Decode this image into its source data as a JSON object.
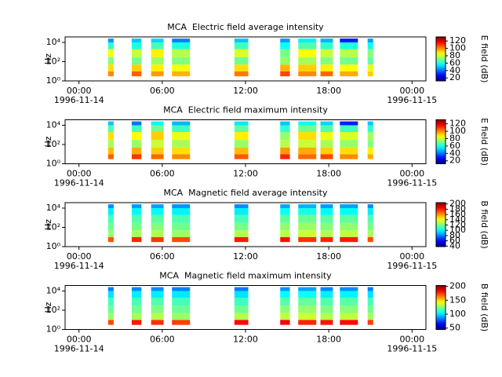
{
  "chart_data": [
    {
      "type": "spectrogram",
      "title": "MCA  Electric field average intensity",
      "ylabel": "Hz",
      "zlabel": "E field (dB)",
      "xlim": [
        -1,
        25
      ],
      "xticks": [
        {
          "value": 0,
          "label": "00:00"
        },
        {
          "value": 6,
          "label": "06:00"
        },
        {
          "value": 12,
          "label": "12:00"
        },
        {
          "value": 18,
          "label": "18:00"
        },
        {
          "value": 24,
          "label": "00:00"
        }
      ],
      "date_labels": [
        {
          "value": 0,
          "label": "1996-11-14"
        },
        {
          "value": 24,
          "label": "1996-11-15"
        }
      ],
      "ylim": [
        1,
        37000
      ],
      "log_y": true,
      "yticks": [
        {
          "value": 1,
          "label": "10⁰"
        },
        {
          "value": 100,
          "label": "10²"
        },
        {
          "value": 10000,
          "label": "10⁴"
        }
      ],
      "y_edges": [
        3,
        10,
        50,
        300,
        2000,
        10000,
        25000
      ],
      "colormap": "jet",
      "zlim": [
        12,
        131
      ],
      "zticks": [
        20,
        40,
        60,
        80,
        100,
        120
      ],
      "segments": [
        {
          "start": 2.1,
          "end": 2.5,
          "values": [
            100,
            90,
            72,
            85,
            62,
            45
          ]
        },
        {
          "start": 3.8,
          "end": 4.5,
          "values": [
            105,
            92,
            70,
            80,
            60,
            50
          ]
        },
        {
          "start": 5.2,
          "end": 6.1,
          "values": [
            98,
            88,
            75,
            88,
            65,
            52
          ]
        },
        {
          "start": 6.7,
          "end": 8.0,
          "values": [
            95,
            85,
            72,
            78,
            60,
            42
          ]
        },
        {
          "start": 11.2,
          "end": 12.2,
          "values": [
            102,
            90,
            70,
            82,
            64,
            50
          ]
        },
        {
          "start": 14.5,
          "end": 15.2,
          "values": [
            108,
            95,
            74,
            70,
            58,
            45
          ]
        },
        {
          "start": 15.8,
          "end": 17.1,
          "values": [
            100,
            92,
            76,
            86,
            66,
            55
          ]
        },
        {
          "start": 17.4,
          "end": 18.3,
          "values": [
            104,
            88,
            72,
            80,
            62,
            48
          ]
        },
        {
          "start": 18.8,
          "end": 20.1,
          "values": [
            96,
            86,
            70,
            78,
            60,
            30
          ]
        },
        {
          "start": 20.8,
          "end": 21.2,
          "values": [
            92,
            84,
            68,
            72,
            58,
            46
          ]
        }
      ]
    },
    {
      "type": "spectrogram",
      "title": "MCA  Electric field maximum intensity",
      "ylabel": "Hz",
      "zlabel": "E field (dB)",
      "xlim": [
        -1,
        25
      ],
      "xticks": [
        {
          "value": 0,
          "label": "00:00"
        },
        {
          "value": 6,
          "label": "06:00"
        },
        {
          "value": 12,
          "label": "12:00"
        },
        {
          "value": 18,
          "label": "18:00"
        },
        {
          "value": 24,
          "label": "00:00"
        }
      ],
      "date_labels": [
        {
          "value": 0,
          "label": "1996-11-14"
        },
        {
          "value": 24,
          "label": "1996-11-15"
        }
      ],
      "ylim": [
        1,
        37000
      ],
      "log_y": true,
      "yticks": [
        {
          "value": 1,
          "label": "10⁰"
        },
        {
          "value": 100,
          "label": "10²"
        },
        {
          "value": 10000,
          "label": "10⁴"
        }
      ],
      "y_edges": [
        3,
        10,
        50,
        300,
        2000,
        10000,
        25000
      ],
      "colormap": "jet",
      "zlim": [
        12,
        131
      ],
      "zticks": [
        20,
        40,
        60,
        80,
        100,
        120
      ],
      "segments": [
        {
          "start": 2.1,
          "end": 2.5,
          "values": [
            105,
            94,
            76,
            90,
            66,
            50
          ]
        },
        {
          "start": 3.8,
          "end": 4.5,
          "values": [
            110,
            96,
            74,
            86,
            64,
            40
          ]
        },
        {
          "start": 5.2,
          "end": 6.1,
          "values": [
            104,
            92,
            80,
            92,
            70,
            56
          ]
        },
        {
          "start": 6.7,
          "end": 8.0,
          "values": [
            100,
            90,
            76,
            84,
            64,
            48
          ]
        },
        {
          "start": 11.2,
          "end": 12.2,
          "values": [
            106,
            94,
            74,
            88,
            68,
            54
          ]
        },
        {
          "start": 14.5,
          "end": 15.2,
          "values": [
            112,
            98,
            78,
            74,
            62,
            50
          ]
        },
        {
          "start": 15.8,
          "end": 17.1,
          "values": [
            104,
            96,
            80,
            90,
            70,
            58
          ]
        },
        {
          "start": 17.4,
          "end": 18.3,
          "values": [
            108,
            92,
            76,
            84,
            66,
            52
          ]
        },
        {
          "start": 18.8,
          "end": 20.1,
          "values": [
            100,
            90,
            74,
            82,
            64,
            30
          ]
        },
        {
          "start": 20.8,
          "end": 21.2,
          "values": [
            96,
            88,
            72,
            76,
            62,
            50
          ]
        }
      ]
    },
    {
      "type": "spectrogram",
      "title": "MCA  Magnetic field average intensity",
      "ylabel": "Hz",
      "zlabel": "B field (dB)",
      "xlim": [
        -1,
        25
      ],
      "xticks": [
        {
          "value": 0,
          "label": "00:00"
        },
        {
          "value": 6,
          "label": "06:00"
        },
        {
          "value": 12,
          "label": "12:00"
        },
        {
          "value": 18,
          "label": "18:00"
        },
        {
          "value": 24,
          "label": "00:00"
        }
      ],
      "date_labels": [
        {
          "value": 0,
          "label": "1996-11-14"
        },
        {
          "value": 24,
          "label": "1996-11-15"
        }
      ],
      "ylim": [
        1,
        37000
      ],
      "log_y": true,
      "yticks": [
        {
          "value": 1,
          "label": "10⁰"
        },
        {
          "value": 100,
          "label": "10²"
        },
        {
          "value": 10000,
          "label": "10⁴"
        }
      ],
      "y_edges": [
        3,
        10,
        50,
        300,
        2000,
        10000,
        25000
      ],
      "colormap": "jet",
      "zlim": [
        38,
        205
      ],
      "zticks": [
        40,
        60,
        80,
        100,
        120,
        140,
        160,
        180,
        200
      ],
      "segments": [
        {
          "start": 2.1,
          "end": 2.5,
          "values": [
            170,
            125,
            118,
            112,
            98,
            82
          ]
        },
        {
          "start": 3.8,
          "end": 4.5,
          "values": [
            178,
            128,
            120,
            114,
            100,
            84
          ]
        },
        {
          "start": 5.2,
          "end": 6.1,
          "values": [
            175,
            130,
            122,
            115,
            100,
            85
          ]
        },
        {
          "start": 6.7,
          "end": 8.0,
          "values": [
            172,
            126,
            119,
            113,
            99,
            83
          ]
        },
        {
          "start": 11.2,
          "end": 12.2,
          "values": [
            180,
            130,
            120,
            112,
            98,
            82
          ]
        },
        {
          "start": 14.5,
          "end": 15.2,
          "values": [
            182,
            132,
            124,
            116,
            102,
            86
          ]
        },
        {
          "start": 15.8,
          "end": 17.1,
          "values": [
            176,
            134,
            126,
            118,
            104,
            88
          ]
        },
        {
          "start": 17.4,
          "end": 18.3,
          "values": [
            178,
            130,
            122,
            115,
            100,
            84
          ]
        },
        {
          "start": 18.8,
          "end": 20.1,
          "values": [
            180,
            132,
            124,
            116,
            101,
            85
          ]
        },
        {
          "start": 20.8,
          "end": 21.2,
          "values": [
            172,
            128,
            120,
            113,
            98,
            82
          ]
        }
      ]
    },
    {
      "type": "spectrogram",
      "title": "MCA  Magnetic field maximum intensity",
      "ylabel": "Hz",
      "zlabel": "B field (dB)",
      "xlim": [
        -1,
        25
      ],
      "xticks": [
        {
          "value": 0,
          "label": "00:00"
        },
        {
          "value": 6,
          "label": "06:00"
        },
        {
          "value": 12,
          "label": "12:00"
        },
        {
          "value": 18,
          "label": "18:00"
        },
        {
          "value": 24,
          "label": "00:00"
        }
      ],
      "date_labels": [
        {
          "value": 0,
          "label": "1996-11-14"
        },
        {
          "value": 24,
          "label": "1996-11-15"
        }
      ],
      "ylim": [
        1,
        37000
      ],
      "log_y": true,
      "yticks": [
        {
          "value": 1,
          "label": "10⁰"
        },
        {
          "value": 100,
          "label": "10²"
        },
        {
          "value": 10000,
          "label": "10⁴"
        }
      ],
      "y_edges": [
        3,
        10,
        50,
        300,
        2000,
        10000,
        25000
      ],
      "colormap": "jet",
      "zlim": [
        45,
        203
      ],
      "zticks": [
        50,
        100,
        150,
        200
      ],
      "segments": [
        {
          "start": 2.1,
          "end": 2.5,
          "values": [
            172,
            128,
            120,
            114,
            100,
            84
          ]
        },
        {
          "start": 3.8,
          "end": 4.5,
          "values": [
            180,
            130,
            122,
            116,
            102,
            86
          ]
        },
        {
          "start": 5.2,
          "end": 6.1,
          "values": [
            176,
            132,
            124,
            117,
            102,
            87
          ]
        },
        {
          "start": 6.7,
          "end": 8.0,
          "values": [
            174,
            128,
            121,
            115,
            101,
            85
          ]
        },
        {
          "start": 11.2,
          "end": 12.2,
          "values": [
            182,
            132,
            122,
            114,
            100,
            84
          ]
        },
        {
          "start": 14.5,
          "end": 15.2,
          "values": [
            184,
            134,
            126,
            118,
            104,
            88
          ]
        },
        {
          "start": 15.8,
          "end": 17.1,
          "values": [
            178,
            136,
            128,
            120,
            106,
            90
          ]
        },
        {
          "start": 17.4,
          "end": 18.3,
          "values": [
            180,
            132,
            124,
            117,
            102,
            86
          ]
        },
        {
          "start": 18.8,
          "end": 20.1,
          "values": [
            182,
            134,
            126,
            118,
            103,
            87
          ]
        },
        {
          "start": 20.8,
          "end": 21.2,
          "values": [
            174,
            130,
            122,
            115,
            100,
            84
          ]
        }
      ]
    }
  ]
}
